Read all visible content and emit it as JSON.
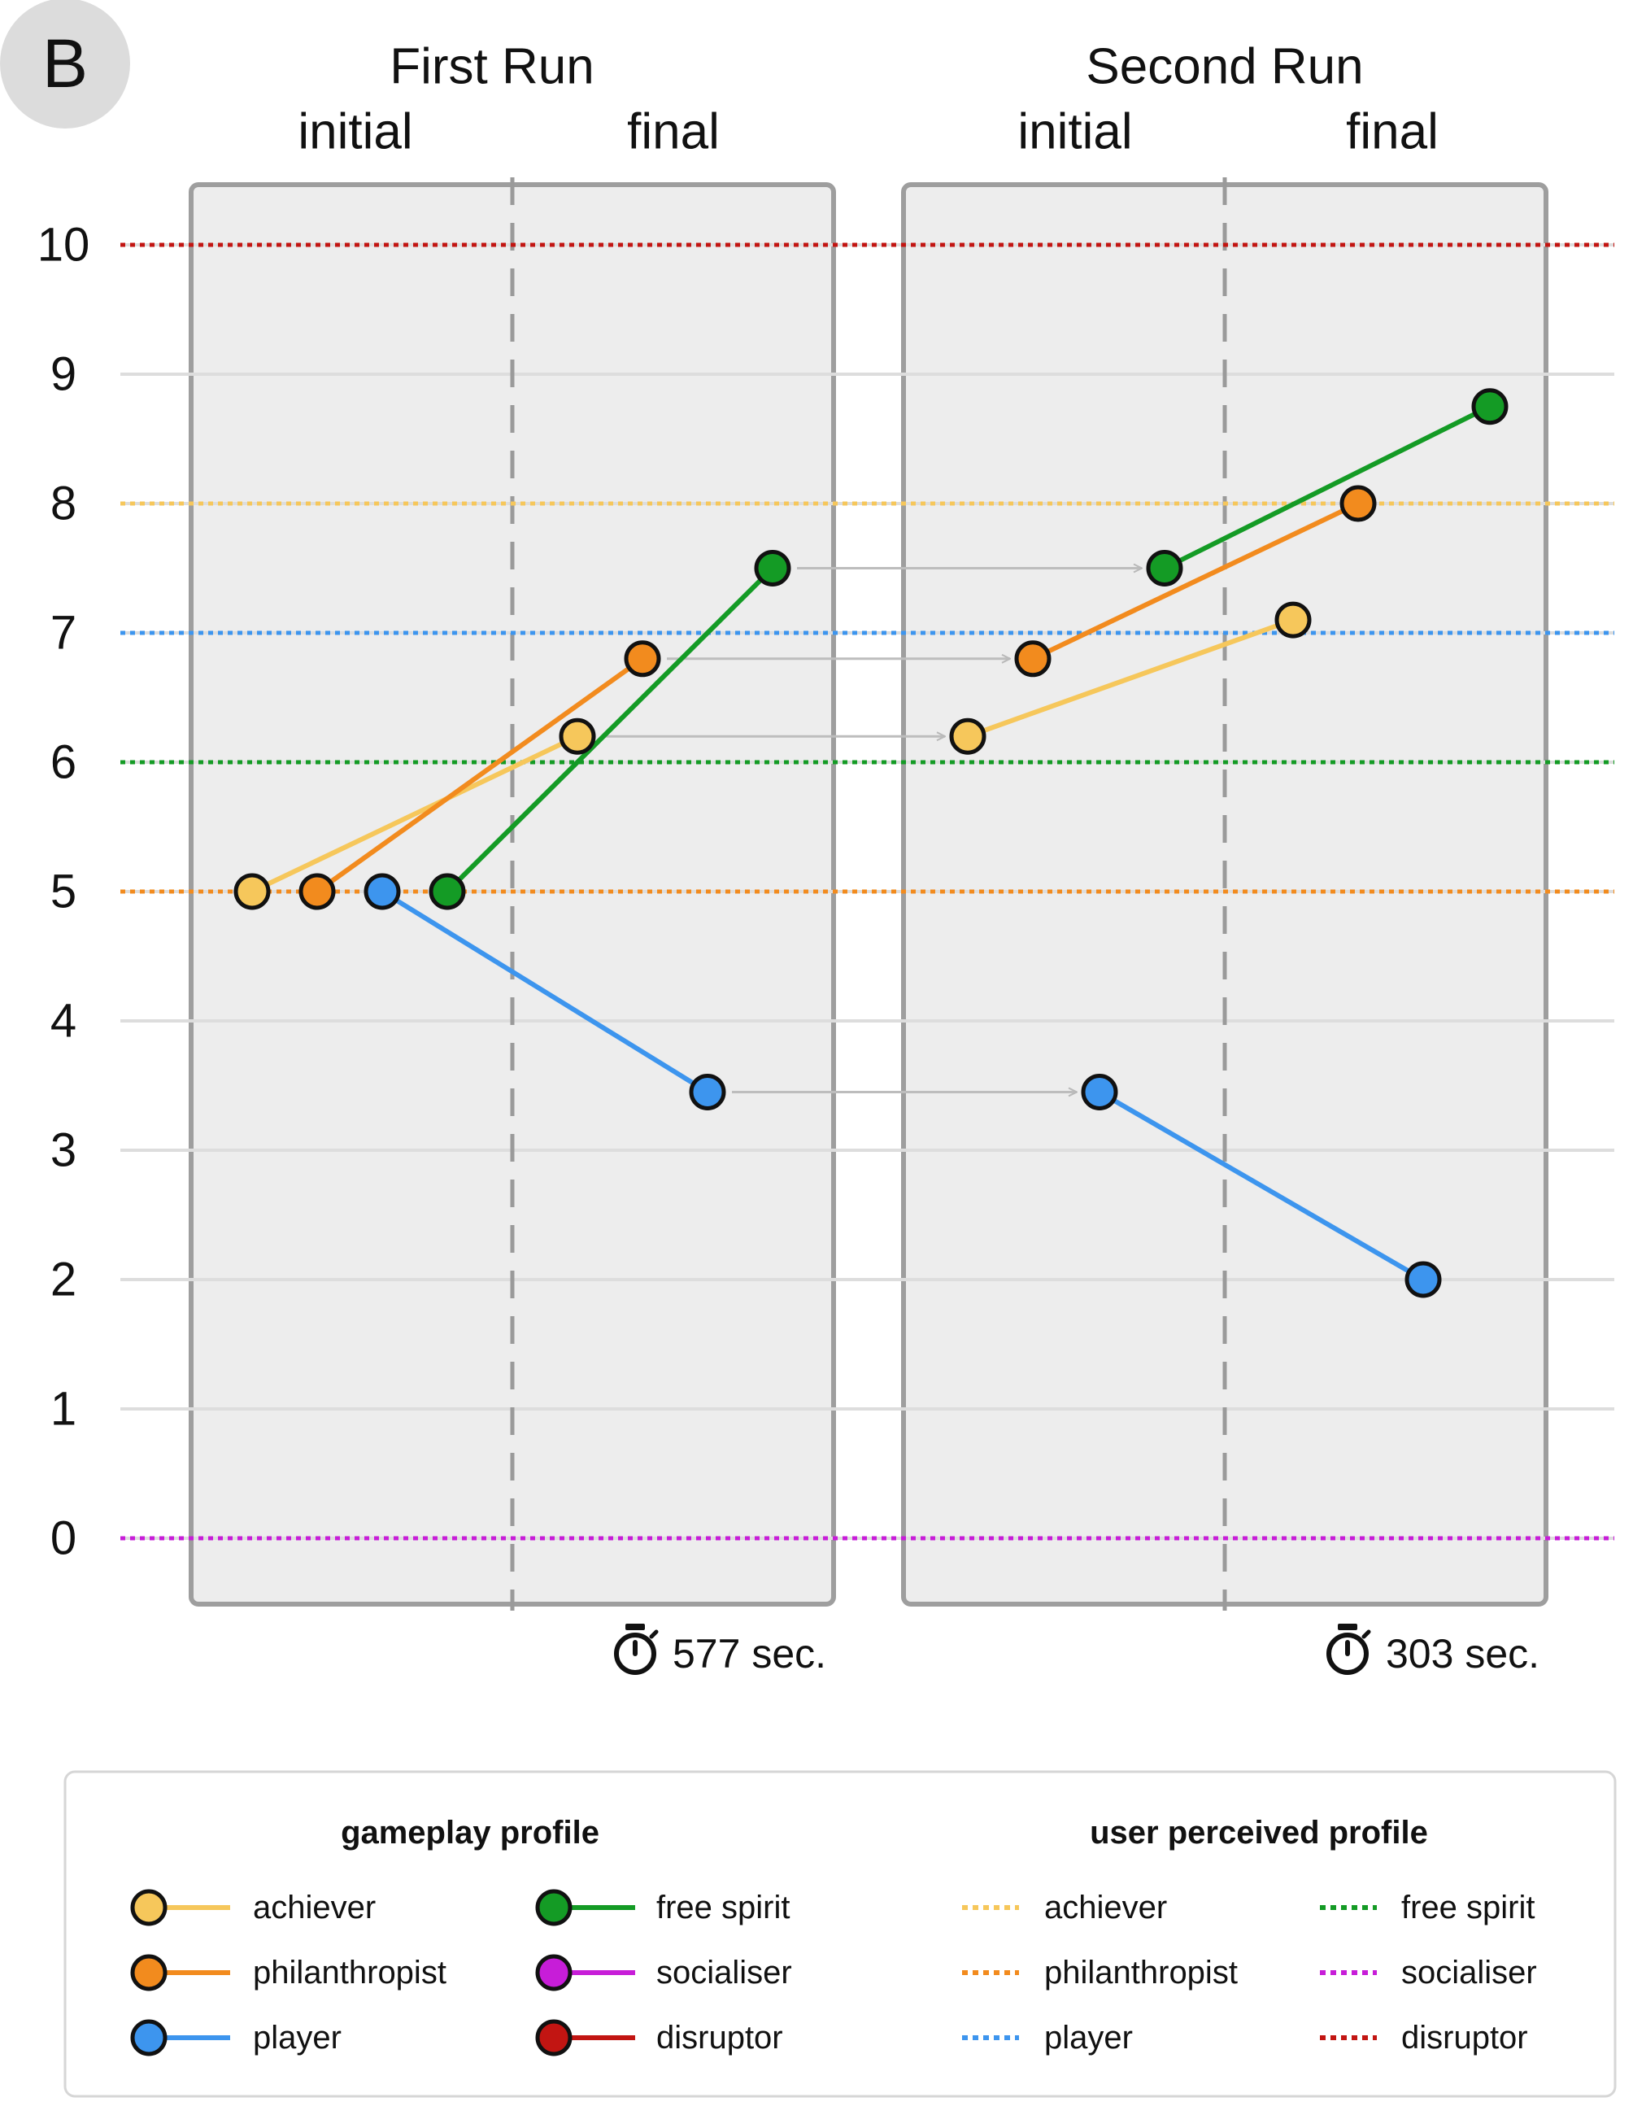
{
  "panel_label": "B",
  "colors": {
    "achiever": "#F6C75B",
    "philanthropist": "#F28B1E",
    "player": "#3D95EE",
    "free_spirit": "#149B25",
    "socialiser": "#C71DD8",
    "disruptor": "#C21512"
  },
  "chart_data": {
    "type": "line",
    "ylim": [
      0,
      10
    ],
    "yticks": [
      "0",
      "1",
      "2",
      "3",
      "4",
      "5",
      "6",
      "7",
      "8",
      "9",
      "10"
    ],
    "runs": [
      {
        "title": "First Run",
        "phase_labels": [
          "initial",
          "final"
        ],
        "time": "577 sec.",
        "series": [
          {
            "name": "achiever",
            "initial": 5,
            "final": 6.2
          },
          {
            "name": "philanthropist",
            "initial": 5,
            "final": 6.8
          },
          {
            "name": "player",
            "initial": 5,
            "final": 3.45
          },
          {
            "name": "free spirit",
            "initial": 5,
            "final": 7.5
          }
        ]
      },
      {
        "title": "Second Run",
        "phase_labels": [
          "initial",
          "final"
        ],
        "time": "303 sec.",
        "series": [
          {
            "name": "achiever",
            "initial": 6.2,
            "final": 7.1
          },
          {
            "name": "philanthropist",
            "initial": 6.8,
            "final": 8
          },
          {
            "name": "player",
            "initial": 3.45,
            "final": 2
          },
          {
            "name": "free spirit",
            "initial": 7.5,
            "final": 8.75
          }
        ]
      }
    ],
    "perceived_profile": [
      {
        "name": "disruptor",
        "value": 10
      },
      {
        "name": "achiever",
        "value": 8
      },
      {
        "name": "player",
        "value": 7
      },
      {
        "name": "free spirit",
        "value": 6
      },
      {
        "name": "philanthropist",
        "value": 5
      },
      {
        "name": "socialiser",
        "value": 0
      }
    ]
  },
  "legend": {
    "gameplay_title": "gameplay profile",
    "perceived_title": "user perceived profile",
    "gameplay_items": [
      {
        "label": "achiever",
        "key": "achiever"
      },
      {
        "label": "philanthropist",
        "key": "philanthropist"
      },
      {
        "label": "player",
        "key": "player"
      },
      {
        "label": "free spirit",
        "key": "free_spirit"
      },
      {
        "label": "socialiser",
        "key": "socialiser"
      },
      {
        "label": "disruptor",
        "key": "disruptor"
      }
    ],
    "perceived_items": [
      {
        "label": "achiever",
        "key": "achiever"
      },
      {
        "label": "philanthropist",
        "key": "philanthropist"
      },
      {
        "label": "player",
        "key": "player"
      },
      {
        "label": "free spirit",
        "key": "free_spirit"
      },
      {
        "label": "socialiser",
        "key": "socialiser"
      },
      {
        "label": "disruptor",
        "key": "disruptor"
      }
    ]
  }
}
